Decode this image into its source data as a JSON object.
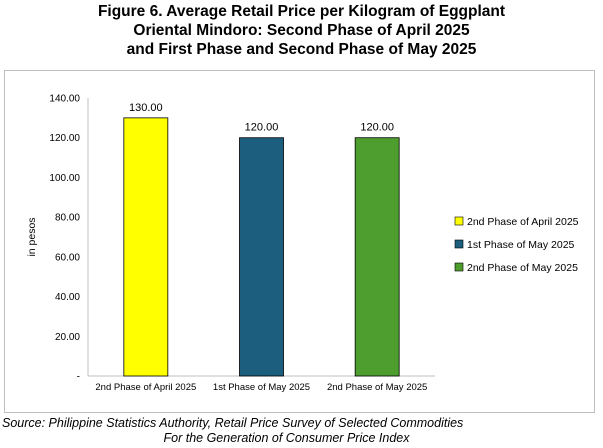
{
  "title_lines": [
    "Figure 6. Average Retail Price per Kilogram of Eggplant",
    "Oriental Mindoro: Second Phase of April 2025",
    "and First Phase and Second Phase of May 2025"
  ],
  "source_lines": [
    "Source: Philippine Statistics Authority, Retail Price Survey of Selected Commodities",
    "For the Generation of Consumer Price Index"
  ],
  "chart_data": {
    "type": "bar",
    "categories": [
      "2nd Phase of April 2025",
      "1st Phase of May 2025",
      "2nd Phase of May 2025"
    ],
    "values": [
      130,
      120,
      120
    ],
    "data_labels": [
      "130.00",
      "120.00",
      "120.00"
    ],
    "colors": [
      "#ffff00",
      "#1b5e7e",
      "#4e9e2f"
    ],
    "title": "Figure 6. Average Retail Price per Kilogram of Eggplant Oriental Mindoro: Second Phase of April 2025 and First Phase and Second Phase of May 2025",
    "xlabel": "",
    "ylabel": "in pesos",
    "ylim": [
      0,
      140
    ],
    "yticks": [
      0,
      20,
      40,
      60,
      80,
      100,
      120,
      140
    ],
    "ytick_labels": [
      "-",
      "20.00",
      "40.00",
      "60.00",
      "80.00",
      "100.00",
      "120.00",
      "140.00"
    ],
    "grid": false,
    "legend": {
      "placement": "right",
      "entries": [
        "2nd Phase of April 2025",
        "1st Phase of May 2025",
        "2nd Phase of May 2025"
      ]
    }
  }
}
